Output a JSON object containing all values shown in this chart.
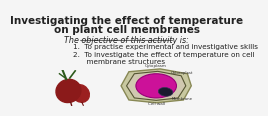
{
  "title_line1": "Investigating the effect of temperature",
  "title_line2": "on plant cell membranes",
  "objective_header": "The objective of this activity is:",
  "point1": "1.  To practise experimental and investigative skills",
  "point2": "2.  To investigate the effect of temperature on cell",
  "point2b": "      membrane structures",
  "bg_color": "#f5f5f5",
  "title_color": "#222222",
  "text_color": "#222222",
  "title_fontsize": 7.5,
  "body_fontsize": 5.2,
  "header_fontsize": 5.8
}
